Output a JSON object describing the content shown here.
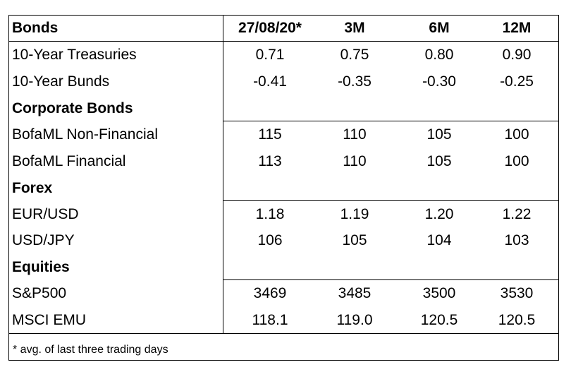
{
  "header": {
    "title": "Bonds",
    "columns": [
      "27/08/20*",
      "3M",
      "6M",
      "12M"
    ]
  },
  "sections": [
    {
      "name": "",
      "rows": [
        {
          "label": "10-Year Treasuries",
          "values": [
            "0.71",
            "0.75",
            "0.80",
            "0.90"
          ]
        },
        {
          "label": "10-Year Bunds",
          "values": [
            "-0.41",
            "-0.35",
            "-0.30",
            "-0.25"
          ]
        }
      ]
    },
    {
      "name": "Corporate Bonds",
      "rows": [
        {
          "label": "BofaML Non-Financial",
          "values": [
            "115",
            "110",
            "105",
            "100"
          ]
        },
        {
          "label": "BofaML Financial",
          "values": [
            "113",
            "110",
            "105",
            "100"
          ]
        }
      ]
    },
    {
      "name": "Forex",
      "rows": [
        {
          "label": "EUR/USD",
          "values": [
            "1.18",
            "1.19",
            "1.20",
            "1.22"
          ]
        },
        {
          "label": "USD/JPY",
          "values": [
            "106",
            "105",
            "104",
            "103"
          ]
        }
      ]
    },
    {
      "name": "Equities",
      "rows": [
        {
          "label": "S&P500",
          "values": [
            "3469",
            "3485",
            "3500",
            "3530"
          ]
        },
        {
          "label": "MSCI EMU",
          "values": [
            "118.1",
            "119.0",
            "120.5",
            "120.5"
          ]
        }
      ]
    }
  ],
  "footnote": "* avg. of last three trading days"
}
